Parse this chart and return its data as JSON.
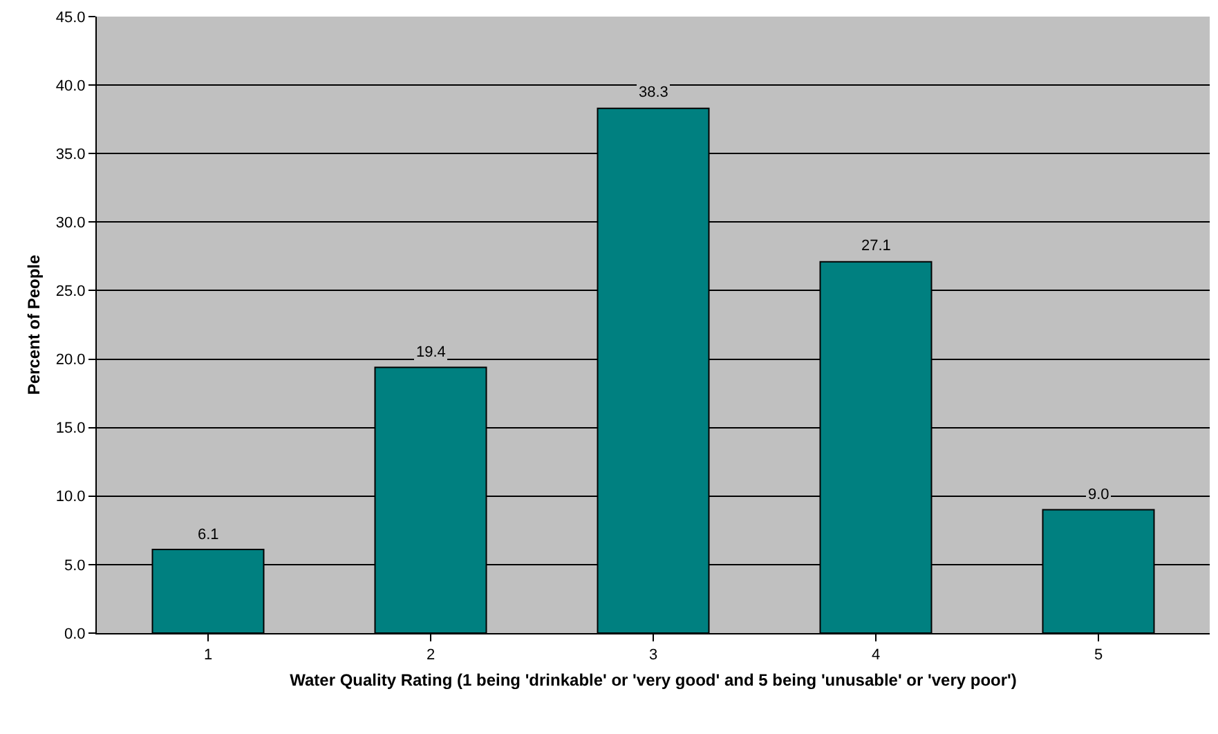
{
  "chart_data": {
    "type": "bar",
    "xlabel": "Water Quality Rating (1 being 'drinkable' or 'very good' and 5 being 'unusable' or 'very poor')",
    "ylabel": "Percent of People",
    "categories": [
      "1",
      "2",
      "3",
      "4",
      "5"
    ],
    "values": [
      6.1,
      19.4,
      38.3,
      27.1,
      9.0
    ],
    "value_labels": [
      "6.1",
      "19.4",
      "38.3",
      "27.1",
      "9.0"
    ],
    "color": "#008080",
    "ylim": [
      0,
      45
    ],
    "yticks": [
      {
        "value": 0,
        "label": "0.0"
      },
      {
        "value": 5,
        "label": "5.0"
      },
      {
        "value": 10,
        "label": "10.0"
      },
      {
        "value": 15,
        "label": "15.0"
      },
      {
        "value": 20,
        "label": "20.0"
      },
      {
        "value": 25,
        "label": "25.0"
      },
      {
        "value": 30,
        "label": "30.0"
      },
      {
        "value": 35,
        "label": "35.0"
      },
      {
        "value": 40,
        "label": "40.0"
      },
      {
        "value": 45,
        "label": "45.0"
      }
    ],
    "grid": "y",
    "legend": false
  }
}
